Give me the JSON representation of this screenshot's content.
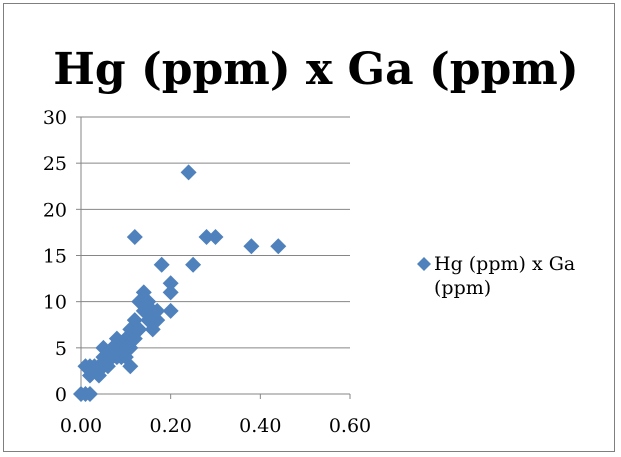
{
  "colors": {
    "marker": "#4f81bd",
    "gridline": "#868686",
    "border": "#7f7f7f"
  },
  "chart_data": {
    "type": "scatter",
    "title": "Hg (ppm) x Ga (ppm)",
    "xlabel": "",
    "ylabel": "",
    "xlim": [
      0,
      0.6
    ],
    "ylim": [
      0,
      30
    ],
    "x_ticks": [
      "0.00",
      "0.20",
      "0.40",
      "0.60"
    ],
    "y_ticks": [
      "0",
      "5",
      "10",
      "15",
      "20",
      "25",
      "30"
    ],
    "grid": "horizontal major gridlines",
    "legend_position": "right",
    "marker": "diamond",
    "series": [
      {
        "name": "Hg (ppm) x Ga (ppm)",
        "points": [
          [
            0.0,
            0
          ],
          [
            0.01,
            0
          ],
          [
            0.02,
            0
          ],
          [
            0.01,
            3
          ],
          [
            0.02,
            2
          ],
          [
            0.02,
            3
          ],
          [
            0.03,
            3
          ],
          [
            0.04,
            2
          ],
          [
            0.04,
            3
          ],
          [
            0.05,
            4
          ],
          [
            0.05,
            5
          ],
          [
            0.05,
            3
          ],
          [
            0.06,
            4
          ],
          [
            0.06,
            3
          ],
          [
            0.07,
            4
          ],
          [
            0.07,
            5
          ],
          [
            0.08,
            4
          ],
          [
            0.08,
            5
          ],
          [
            0.08,
            6
          ],
          [
            0.09,
            5
          ],
          [
            0.09,
            4
          ],
          [
            0.1,
            6
          ],
          [
            0.1,
            5
          ],
          [
            0.1,
            4
          ],
          [
            0.11,
            3
          ],
          [
            0.11,
            5
          ],
          [
            0.11,
            7
          ],
          [
            0.12,
            6
          ],
          [
            0.12,
            8
          ],
          [
            0.12,
            17
          ],
          [
            0.13,
            10
          ],
          [
            0.13,
            7
          ],
          [
            0.14,
            11
          ],
          [
            0.14,
            9
          ],
          [
            0.15,
            10
          ],
          [
            0.15,
            8
          ],
          [
            0.16,
            7
          ],
          [
            0.16,
            9
          ],
          [
            0.17,
            9
          ],
          [
            0.17,
            8
          ],
          [
            0.18,
            14
          ],
          [
            0.2,
            9
          ],
          [
            0.2,
            11
          ],
          [
            0.2,
            12
          ],
          [
            0.24,
            24
          ],
          [
            0.25,
            14
          ],
          [
            0.28,
            17
          ],
          [
            0.3,
            17
          ],
          [
            0.38,
            16
          ],
          [
            0.44,
            16
          ]
        ]
      }
    ]
  }
}
